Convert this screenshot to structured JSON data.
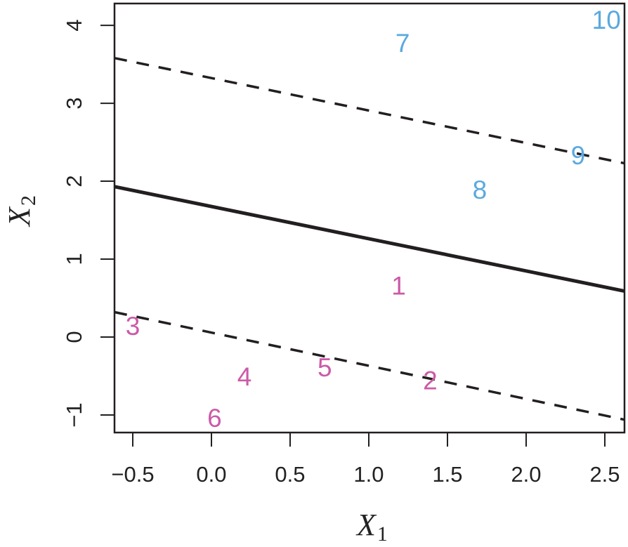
{
  "chart_data": {
    "type": "scatter",
    "title": "",
    "xlabel": "X",
    "xlabel_sub": "1",
    "ylabel": "X",
    "ylabel_sub": "2",
    "xlim": [
      -0.616,
      2.625
    ],
    "ylim": [
      -1.225,
      4.28
    ],
    "x_ticks": [
      -0.5,
      0.0,
      0.5,
      1.0,
      1.5,
      2.0,
      2.5
    ],
    "x_tick_labels": [
      "−0.5",
      "0.0",
      "0.5",
      "1.0",
      "1.5",
      "2.0",
      "2.5"
    ],
    "y_ticks": [
      -1,
      0,
      1,
      2,
      3,
      4
    ],
    "y_tick_labels": [
      "−1",
      "0",
      "1",
      "2",
      "3",
      "4"
    ],
    "grid": false,
    "legend": null,
    "series": [
      {
        "name": "class-pink",
        "color": "#CC5AA8",
        "points": [
          {
            "label": "1",
            "x": 1.19,
            "y": 0.66
          },
          {
            "label": "2",
            "x": 1.39,
            "y": -0.56
          },
          {
            "label": "3",
            "x": -0.5,
            "y": 0.14
          },
          {
            "label": "4",
            "x": 0.21,
            "y": -0.51
          },
          {
            "label": "5",
            "x": 0.72,
            "y": -0.39
          },
          {
            "label": "6",
            "x": 0.02,
            "y": -1.04
          }
        ]
      },
      {
        "name": "class-blue",
        "color": "#5BA9DE",
        "points": [
          {
            "label": "7",
            "x": 1.215,
            "y": 3.77
          },
          {
            "label": "8",
            "x": 1.705,
            "y": 1.89
          },
          {
            "label": "9",
            "x": 2.33,
            "y": 2.33
          },
          {
            "label": "10",
            "x": 2.51,
            "y": 4.07
          }
        ]
      }
    ],
    "lines": [
      {
        "name": "maximal-margin-hyperplane",
        "style": "solid",
        "width": 5,
        "color": "#231F20",
        "x": [
          -0.616,
          2.625
        ],
        "y": [
          1.93,
          0.59
        ]
      },
      {
        "name": "upper-margin",
        "style": "dashed",
        "width": 3.5,
        "color": "#231F20",
        "x": [
          -0.616,
          2.625
        ],
        "y": [
          3.58,
          2.23
        ]
      },
      {
        "name": "lower-margin",
        "style": "dashed",
        "width": 3.5,
        "color": "#231F20",
        "x": [
          -0.616,
          2.625
        ],
        "y": [
          0.32,
          -1.06
        ]
      }
    ]
  }
}
